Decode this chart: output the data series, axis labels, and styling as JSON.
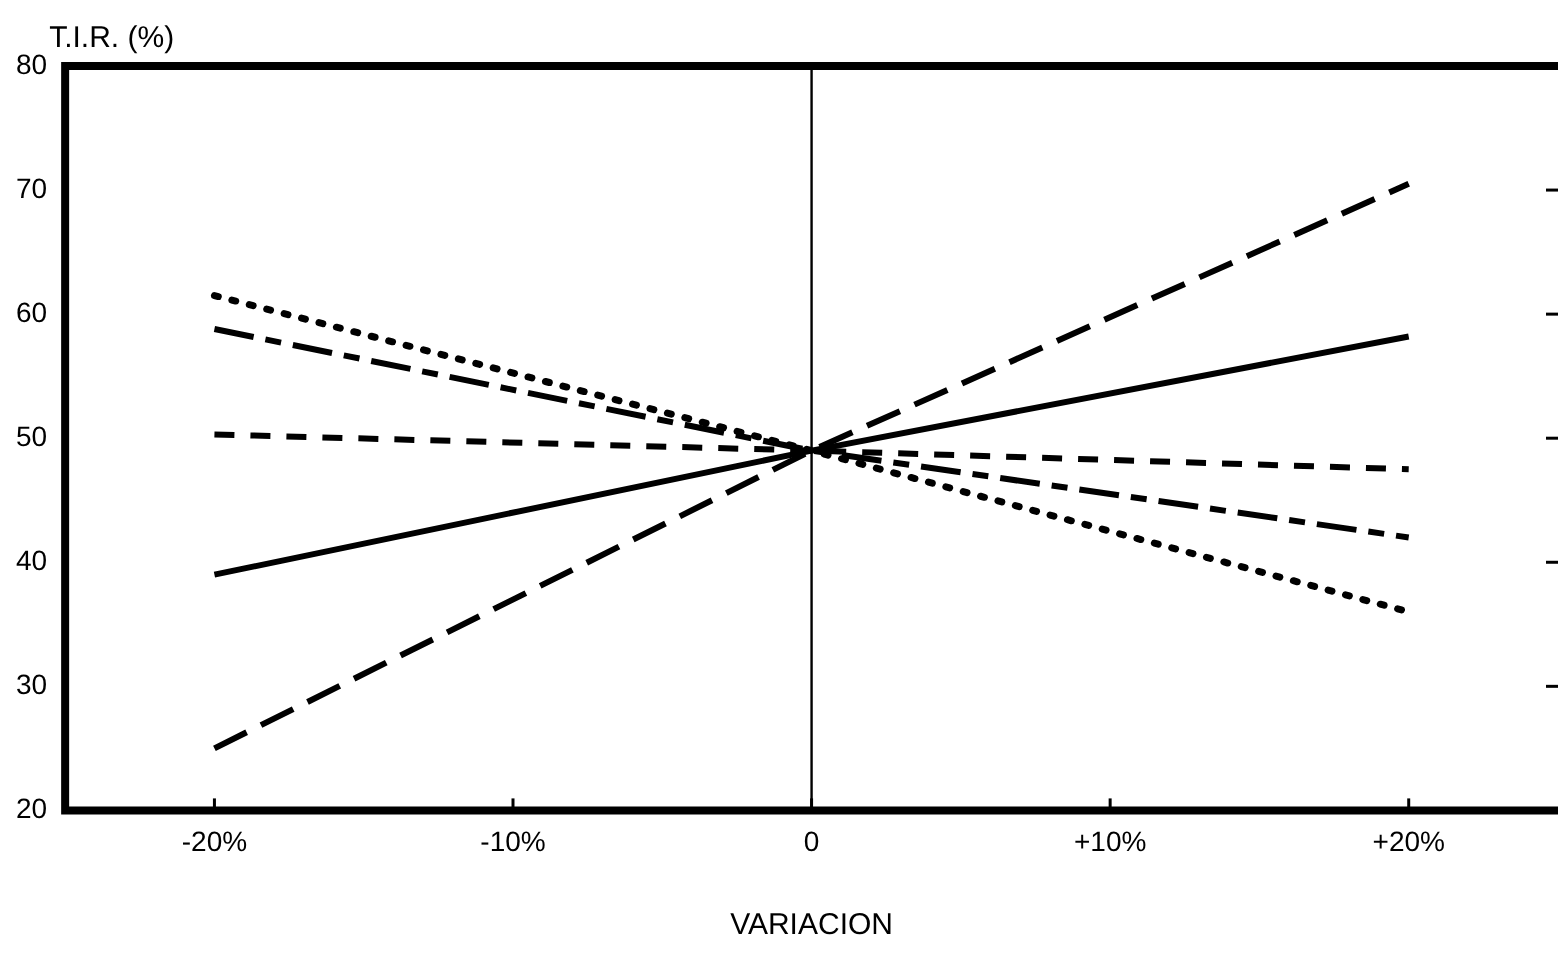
{
  "chart_data": {
    "type": "line",
    "ylabel": "T.I.R. (%)",
    "xlabel": "VARIACION",
    "xlim": [
      -25,
      25
    ],
    "ylim": [
      20,
      80
    ],
    "xticks": [
      {
        "value": -20,
        "label": "-20%"
      },
      {
        "value": -10,
        "label": "-10%"
      },
      {
        "value": 0,
        "label": "0"
      },
      {
        "value": 10,
        "label": "+10%"
      },
      {
        "value": 20,
        "label": "+20%"
      }
    ],
    "yticks": [
      20,
      30,
      40,
      50,
      60,
      70,
      80
    ],
    "x": [
      -20,
      0,
      20
    ],
    "series": [
      {
        "color": "#000000",
        "line_style": "solid",
        "values": [
          39,
          49,
          58.2
        ]
      },
      {
        "color": "#000000",
        "line_style": "dashed",
        "values": [
          25,
          49,
          70.5
        ]
      },
      {
        "color": "#000000",
        "line_style": "dashed",
        "values": [
          50.3,
          49,
          47.5
        ]
      },
      {
        "color": "#000000",
        "line_style": "dashed",
        "values": [
          58.8,
          49,
          42
        ]
      },
      {
        "color": "#000000",
        "line_style": "dotted",
        "values": [
          61.5,
          49,
          36
        ]
      }
    ],
    "ref_lines": [
      {
        "axis": "x",
        "value": 0,
        "color": "#000000"
      }
    ],
    "marker": "none",
    "grid": false,
    "legend": false
  }
}
